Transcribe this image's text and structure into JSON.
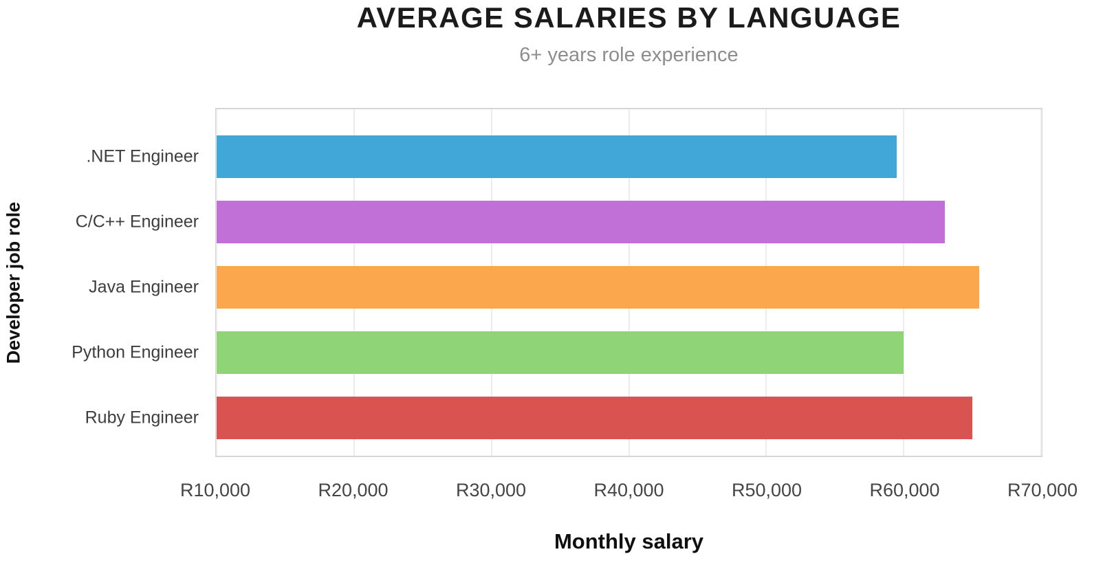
{
  "chart_data": {
    "type": "bar",
    "orientation": "horizontal",
    "title": "AVERAGE SALARIES BY LANGUAGE",
    "subtitle": "6+ years role experience",
    "xlabel": "Monthly salary",
    "ylabel": "Developer job role",
    "categories": [
      ".NET Engineer",
      "C/C++ Engineer",
      "Java Engineer",
      "Python Engineer",
      "Ruby Engineer"
    ],
    "values": [
      59500,
      63000,
      65500,
      60000,
      65000
    ],
    "colors": [
      "#41a7d9",
      "#c170d8",
      "#faa74e",
      "#8fd477",
      "#d95450"
    ],
    "xlim": [
      10000,
      70000
    ],
    "xticks": [
      {
        "value": 10000,
        "label": "R10,000"
      },
      {
        "value": 20000,
        "label": "R20,000"
      },
      {
        "value": 30000,
        "label": "R30,000"
      },
      {
        "value": 40000,
        "label": "R40,000"
      },
      {
        "value": 50000,
        "label": "R50,000"
      },
      {
        "value": 60000,
        "label": "R60,000"
      },
      {
        "value": 70000,
        "label": "R70,000"
      }
    ],
    "grid": "vertical",
    "legend": "none"
  }
}
